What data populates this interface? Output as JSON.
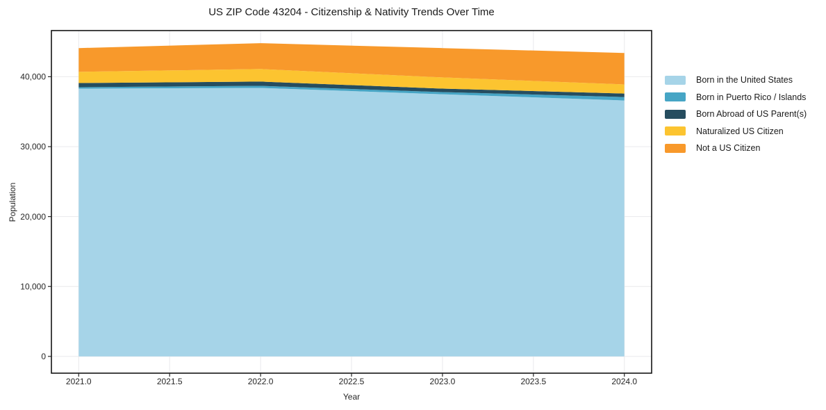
{
  "chart_data": {
    "type": "area",
    "stacked": true,
    "title": "US ZIP Code 43204 - Citizenship & Nativity Trends Over Time",
    "xlabel": "Year",
    "ylabel": "Population",
    "x": [
      2021,
      2022,
      2023,
      2024
    ],
    "series": [
      {
        "name": "Born in the United States",
        "color": "#a6d4e8",
        "values": [
          38300,
          38400,
          37500,
          36600
        ]
      },
      {
        "name": "Born in Puerto Rico / Islands",
        "color": "#46a5c5",
        "values": [
          200,
          300,
          300,
          500
        ]
      },
      {
        "name": "Born Abroad of US Parent(s)",
        "color": "#264d5f",
        "values": [
          600,
          600,
          500,
          500
        ]
      },
      {
        "name": "Naturalized US Citizen",
        "color": "#fcc430",
        "values": [
          1600,
          1800,
          1600,
          1300
        ]
      },
      {
        "name": "Not a US Citizen",
        "color": "#f8992b",
        "values": [
          3400,
          3700,
          4200,
          4500
        ]
      }
    ],
    "stack_totals": [
      44100,
      44800,
      44100,
      43400
    ],
    "xlim": [
      2020.85,
      2024.15
    ],
    "ylim": [
      -2400,
      46600
    ],
    "xticks": {
      "values": [
        2021.0,
        2021.5,
        2022.0,
        2022.5,
        2023.0,
        2023.5,
        2024.0
      ],
      "labels": [
        "2021.0",
        "2021.5",
        "2022.0",
        "2022.5",
        "2023.0",
        "2023.5",
        "2024.0"
      ]
    },
    "yticks": {
      "values": [
        0,
        10000,
        20000,
        30000,
        40000
      ],
      "labels": [
        "0",
        "10,000",
        "20,000",
        "30,000",
        "40,000"
      ]
    },
    "grid": true,
    "legend_position": "right-outside",
    "colors": {
      "grid": "#e9e9ec",
      "spine": "#141414",
      "tick": "#262626",
      "background": "#ffffff"
    }
  }
}
